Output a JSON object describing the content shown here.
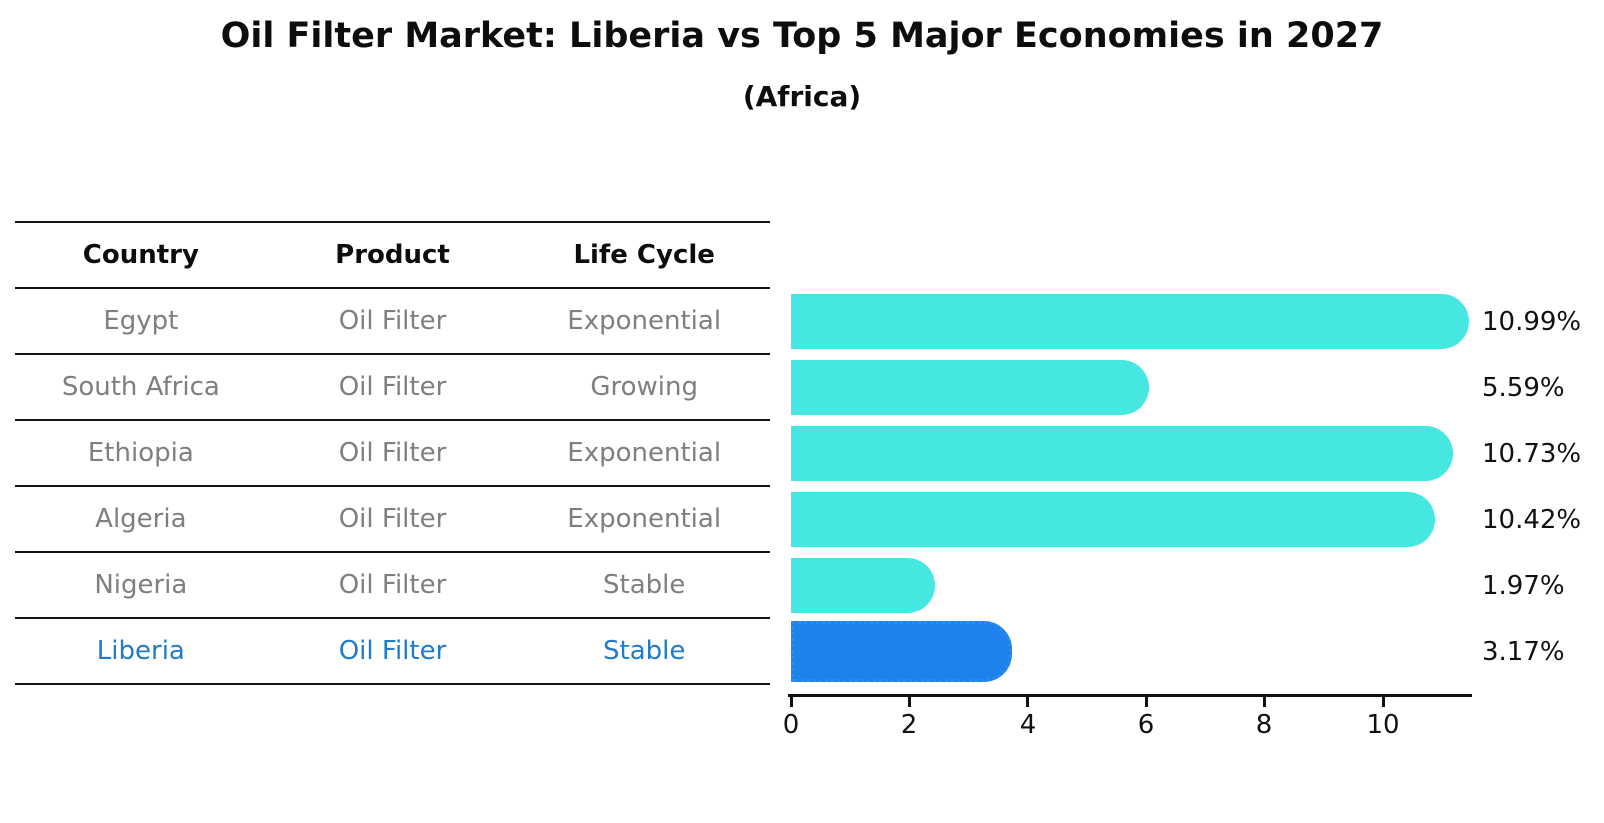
{
  "title": "Oil Filter Market: Liberia vs Top 5 Major Economies in 2027",
  "subtitle": "(Africa)",
  "table": {
    "headers": [
      "Country",
      "Product",
      "Life Cycle"
    ],
    "rows": [
      {
        "country": "Egypt",
        "product": "Oil Filter",
        "life_cycle": "Exponential",
        "highlight": false
      },
      {
        "country": "South Africa",
        "product": "Oil Filter",
        "life_cycle": "Growing",
        "highlight": false
      },
      {
        "country": "Ethiopia",
        "product": "Oil Filter",
        "life_cycle": "Exponential",
        "highlight": false
      },
      {
        "country": "Algeria",
        "product": "Oil Filter",
        "life_cycle": "Exponential",
        "highlight": false
      },
      {
        "country": "Nigeria",
        "product": "Oil Filter",
        "life_cycle": "Stable",
        "highlight": false
      },
      {
        "country": "Liberia",
        "product": "Oil Filter",
        "life_cycle": "Stable",
        "highlight": true
      }
    ]
  },
  "chart_data": {
    "type": "bar",
    "orientation": "horizontal",
    "title": "Oil Filter Market: Liberia vs Top 5 Major Economies in 2027",
    "subtitle": "(Africa)",
    "categories": [
      "Egypt",
      "South Africa",
      "Ethiopia",
      "Algeria",
      "Nigeria",
      "Liberia"
    ],
    "values": [
      10.99,
      5.59,
      10.73,
      10.42,
      1.97,
      3.17
    ],
    "value_labels": [
      "10.99%",
      "5.59%",
      "10.73%",
      "10.42%",
      "1.97%",
      "3.17%"
    ],
    "unit": "%",
    "x_ticks": [
      "0",
      "2",
      "4",
      "6",
      "8",
      "10"
    ],
    "xlim": [
      0,
      11.5
    ],
    "grid": false,
    "legend": false,
    "bar_color": "#46E7E0",
    "highlight_bar_color": "#1E82EC",
    "highlight_index": 5
  },
  "colors": {
    "highlight_text": "#1F7BCE",
    "table_text": "#7f7f7f",
    "heading_text": "#0d0d0d"
  }
}
